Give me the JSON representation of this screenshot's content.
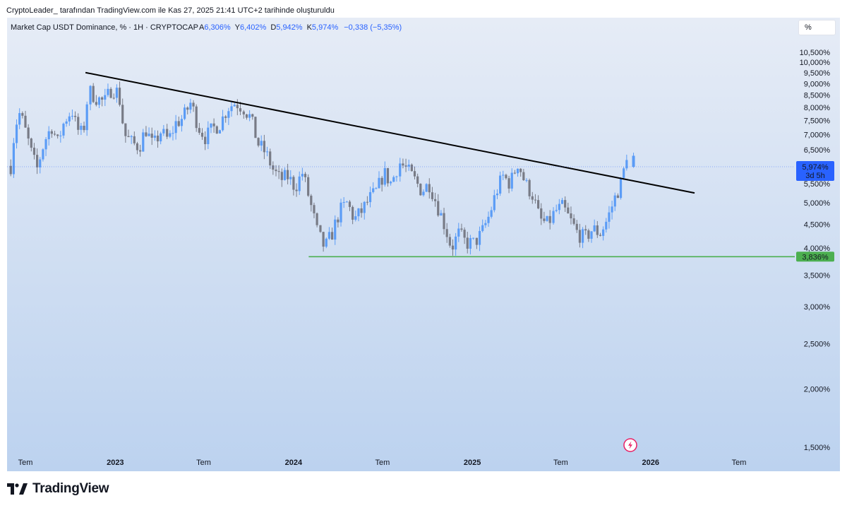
{
  "header": {
    "attribution": "CryptoLeader_ tarafından TradingView.com ile Kas 27, 2025 21:41 UTC+2 tarihinde oluşturuldu"
  },
  "legend": {
    "symbol": "Market Cap USDT Dominance, % · 1H · CRYPTOCAP",
    "open_label": "A",
    "open": "6,306%",
    "high_label": "Y",
    "high": "6,402%",
    "low_label": "D",
    "low": "5,942%",
    "close_label": "K",
    "close": "5,974%",
    "change": "−0,338 (−5,35%)"
  },
  "scale_button": "%",
  "footer": {
    "brand": "TradingView"
  },
  "colors": {
    "up": "#5b9cf6",
    "down": "#787b86",
    "trendline": "#000000",
    "support": "#4caf50",
    "price_badge": "#2962ff",
    "bg_top": "#e6ecf6",
    "bg_bottom": "#bcd2ef"
  },
  "chart_data": {
    "type": "candlestick",
    "y_scale": "log",
    "y_axis": {
      "ticks": [
        "10,500%",
        "10,000%",
        "9,500%",
        "9,000%",
        "8,500%",
        "8,000%",
        "7,500%",
        "7,000%",
        "6,500%",
        "6,000%",
        "5,500%",
        "5,000%",
        "4,500%",
        "4,000%",
        "3,500%",
        "3,000%",
        "2,500%",
        "2,000%",
        "1,500%"
      ],
      "tick_values": [
        10.5,
        10.0,
        9.5,
        9.0,
        8.5,
        8.0,
        7.5,
        7.0,
        6.5,
        6.0,
        5.5,
        5.0,
        4.5,
        4.0,
        3.5,
        3.0,
        2.5,
        2.0,
        1.5
      ],
      "range": [
        1.45,
        11.0
      ]
    },
    "x_axis": {
      "ticks": [
        "Tem",
        "2023",
        "Tem",
        "2024",
        "Tem",
        "2025",
        "Tem",
        "2026",
        "Tem"
      ],
      "tick_dates": [
        "2022-07-01",
        "2023-01-01",
        "2023-07-01",
        "2024-01-01",
        "2024-07-01",
        "2025-01-01",
        "2025-07-01",
        "2026-01-01",
        "2026-07-01"
      ]
    },
    "current_price": {
      "value": 5.974,
      "label": "5,974%",
      "countdown": "3d 5h"
    },
    "support_line": {
      "value": 3.836,
      "label": "3,836%",
      "from": "2024-02-01"
    },
    "trendline": {
      "from": {
        "date": "2022-11-01",
        "value": 9.5
      },
      "to": {
        "date": "2026-04-01",
        "value": 5.25
      }
    },
    "series_path": [
      [
        "2022-06-01",
        6.0
      ],
      [
        "2022-06-10",
        7.3
      ],
      [
        "2022-06-20",
        7.8
      ],
      [
        "2022-07-05",
        6.9
      ],
      [
        "2022-07-15",
        6.3
      ],
      [
        "2022-07-25",
        5.9
      ],
      [
        "2022-08-10",
        6.8
      ],
      [
        "2022-08-25",
        7.3
      ],
      [
        "2022-09-05",
        6.7
      ],
      [
        "2022-09-20",
        7.5
      ],
      [
        "2022-10-05",
        7.9
      ],
      [
        "2022-10-15",
        7.2
      ],
      [
        "2022-10-28",
        7.0
      ],
      [
        "2022-11-08",
        8.7
      ],
      [
        "2022-11-22",
        8.4
      ],
      [
        "2022-12-10",
        8.2
      ],
      [
        "2022-12-25",
        8.8
      ],
      [
        "2023-01-08",
        8.6
      ],
      [
        "2023-01-20",
        7.0
      ],
      [
        "2023-02-05",
        6.7
      ],
      [
        "2023-02-20",
        6.6
      ],
      [
        "2023-03-05",
        7.2
      ],
      [
        "2023-03-20",
        6.6
      ],
      [
        "2023-04-05",
        7.1
      ],
      [
        "2023-04-20",
        6.8
      ],
      [
        "2023-05-05",
        7.4
      ],
      [
        "2023-05-20",
        7.6
      ],
      [
        "2023-06-05",
        8.2
      ],
      [
        "2023-06-20",
        7.3
      ],
      [
        "2023-07-05",
        6.9
      ],
      [
        "2023-07-20",
        7.2
      ],
      [
        "2023-08-05",
        7.4
      ],
      [
        "2023-08-20",
        8.0
      ],
      [
        "2023-09-05",
        8.2
      ],
      [
        "2023-09-20",
        8.0
      ],
      [
        "2023-10-05",
        7.6
      ],
      [
        "2023-10-20",
        6.7
      ],
      [
        "2023-11-05",
        6.4
      ],
      [
        "2023-11-20",
        5.9
      ],
      [
        "2023-12-05",
        5.6
      ],
      [
        "2023-12-20",
        5.7
      ],
      [
        "2024-01-05",
        5.4
      ],
      [
        "2024-01-20",
        5.8
      ],
      [
        "2024-02-05",
        5.0
      ],
      [
        "2024-02-20",
        4.3
      ],
      [
        "2024-03-05",
        4.0
      ],
      [
        "2024-03-20",
        4.3
      ],
      [
        "2024-04-05",
        4.8
      ],
      [
        "2024-04-20",
        5.0
      ],
      [
        "2024-05-05",
        4.6
      ],
      [
        "2024-05-20",
        4.8
      ],
      [
        "2024-06-05",
        5.1
      ],
      [
        "2024-06-20",
        5.3
      ],
      [
        "2024-07-05",
        5.8
      ],
      [
        "2024-07-20",
        5.5
      ],
      [
        "2024-08-05",
        6.1
      ],
      [
        "2024-08-20",
        5.9
      ],
      [
        "2024-09-05",
        5.6
      ],
      [
        "2024-09-20",
        5.3
      ],
      [
        "2024-10-05",
        5.5
      ],
      [
        "2024-10-20",
        5.0
      ],
      [
        "2024-11-05",
        4.5
      ],
      [
        "2024-11-20",
        4.0
      ],
      [
        "2024-12-05",
        4.3
      ],
      [
        "2024-12-20",
        4.1
      ],
      [
        "2025-01-05",
        4.1
      ],
      [
        "2025-01-20",
        4.3
      ],
      [
        "2025-02-05",
        4.7
      ],
      [
        "2025-02-20",
        5.3
      ],
      [
        "2025-03-05",
        5.7
      ],
      [
        "2025-03-20",
        5.5
      ],
      [
        "2025-04-05",
        6.1
      ],
      [
        "2025-04-20",
        5.5
      ],
      [
        "2025-05-05",
        5.2
      ],
      [
        "2025-05-20",
        4.6
      ],
      [
        "2025-06-05",
        4.5
      ],
      [
        "2025-06-20",
        4.8
      ],
      [
        "2025-07-05",
        4.9
      ],
      [
        "2025-07-20",
        4.6
      ],
      [
        "2025-08-05",
        4.3
      ],
      [
        "2025-08-20",
        4.2
      ],
      [
        "2025-09-05",
        4.4
      ],
      [
        "2025-09-20",
        4.3
      ],
      [
        "2025-10-05",
        4.6
      ],
      [
        "2025-10-20",
        5.1
      ],
      [
        "2025-11-05",
        5.6
      ],
      [
        "2025-11-18",
        6.7
      ],
      [
        "2025-11-27",
        5.974
      ]
    ],
    "final_candle": {
      "date": "2025-11-27",
      "open": 6.306,
      "high": 6.402,
      "low": 5.942,
      "close": 5.974
    }
  }
}
